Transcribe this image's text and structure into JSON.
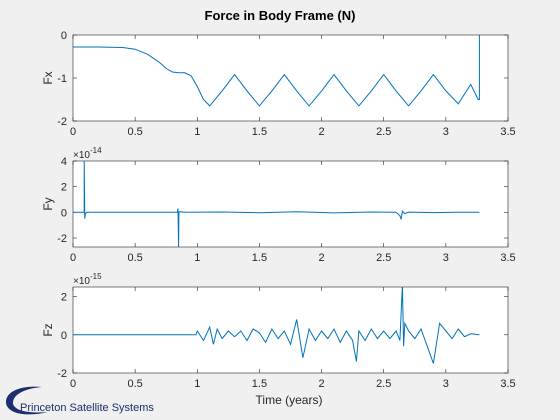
{
  "figure": {
    "title": "Force in Body Frame (N)",
    "xlabel": "Time (years)",
    "logo_text": "Princeton Satellite Systems",
    "logo_icon": "orbit-swoosh-icon"
  },
  "colors": {
    "line": "#0072bd",
    "axes_bg": "#ffffff",
    "figure_bg": "#f0f0f0",
    "axis": "#262626",
    "logo": "#1a2f6b"
  },
  "chart_data": [
    {
      "type": "line",
      "ylabel": "Fx",
      "exponent": "",
      "xlim": [
        0,
        3.5
      ],
      "ylim": [
        -2,
        0
      ],
      "xticks": [
        "0",
        "0.5",
        "1",
        "1.5",
        "2",
        "2.5",
        "3",
        "3.5"
      ],
      "yticks": [
        "-2",
        "-1",
        "0"
      ],
      "ytick_values": [
        -2,
        -1,
        0
      ],
      "x": [
        0,
        0.2,
        0.4,
        0.5,
        0.6,
        0.7,
        0.75,
        0.8,
        0.85,
        0.9,
        0.95,
        1.0,
        1.05,
        1.1,
        1.2,
        1.3,
        1.4,
        1.5,
        1.6,
        1.7,
        1.8,
        1.9,
        2.0,
        2.1,
        2.2,
        2.3,
        2.4,
        2.5,
        2.6,
        2.7,
        2.8,
        2.9,
        3.0,
        3.1,
        3.2,
        3.26,
        3.27,
        3.27
      ],
      "y": [
        -0.28,
        -0.28,
        -0.29,
        -0.33,
        -0.45,
        -0.65,
        -0.78,
        -0.86,
        -0.88,
        -0.88,
        -0.95,
        -1.2,
        -1.5,
        -1.65,
        -1.3,
        -0.92,
        -1.3,
        -1.65,
        -1.3,
        -0.92,
        -1.3,
        -1.65,
        -1.3,
        -0.92,
        -1.3,
        -1.65,
        -1.3,
        -0.92,
        -1.3,
        -1.65,
        -1.3,
        -0.92,
        -1.3,
        -1.6,
        -1.15,
        -1.5,
        -1.5,
        0
      ]
    },
    {
      "type": "line",
      "ylabel": "Fy",
      "exponent": "×10^-14",
      "xlim": [
        0,
        3.5
      ],
      "ylim": [
        -2.7,
        4
      ],
      "xticks": [
        "0",
        "0.5",
        "1",
        "1.5",
        "2",
        "2.5",
        "3",
        "3.5"
      ],
      "yticks": [
        "-2",
        "0",
        "2",
        "4"
      ],
      "ytick_values": [
        -2,
        0,
        2,
        4
      ],
      "x": [
        0,
        0.09,
        0.09,
        0.095,
        0.1,
        0.11,
        0.12,
        0.8,
        0.84,
        0.845,
        0.85,
        0.852,
        0.86,
        0.9,
        1.2,
        1.5,
        1.8,
        2.1,
        2.4,
        2.6,
        2.63,
        2.64,
        2.65,
        2.67,
        2.7,
        2.9,
        3.1,
        3.27
      ],
      "y": [
        0,
        0,
        4,
        -0.5,
        -0.1,
        0,
        0,
        0,
        0,
        0.3,
        -2.7,
        0,
        0.05,
        0,
        0.03,
        -0.03,
        0.05,
        -0.04,
        0.03,
        0,
        -0.25,
        -0.55,
        0.1,
        -0.1,
        0.02,
        -0.02,
        0,
        0
      ]
    },
    {
      "type": "line",
      "ylabel": "Fz",
      "exponent": "×10^-15",
      "xlim": [
        0,
        3.5
      ],
      "ylim": [
        -2,
        2.5
      ],
      "xticks": [
        "0",
        "0.5",
        "1",
        "1.5",
        "2",
        "2.5",
        "3",
        "3.5"
      ],
      "yticks": [
        "-2",
        "0",
        "2"
      ],
      "ytick_values": [
        -2,
        0,
        2
      ],
      "x": [
        0,
        0.99,
        1.0,
        1.05,
        1.1,
        1.13,
        1.16,
        1.2,
        1.25,
        1.3,
        1.35,
        1.4,
        1.45,
        1.5,
        1.55,
        1.6,
        1.65,
        1.7,
        1.75,
        1.8,
        1.85,
        1.9,
        1.95,
        2.0,
        2.05,
        2.1,
        2.15,
        2.2,
        2.25,
        2.28,
        2.3,
        2.35,
        2.4,
        2.45,
        2.5,
        2.55,
        2.6,
        2.63,
        2.65,
        2.66,
        2.67,
        2.7,
        2.75,
        2.8,
        2.85,
        2.9,
        2.95,
        3.0,
        3.05,
        3.1,
        3.15,
        3.2,
        3.27
      ],
      "y": [
        0,
        0,
        0.2,
        -0.3,
        0.4,
        -0.5,
        0.3,
        -0.2,
        0.2,
        -0.1,
        0.2,
        -0.3,
        0.3,
        0.1,
        -0.4,
        0.3,
        -0.2,
        0.2,
        -0.5,
        0.8,
        -1.2,
        0.3,
        -0.3,
        0.2,
        -0.2,
        0.3,
        -0.4,
        0.2,
        -0.3,
        -1.4,
        0.2,
        -0.3,
        0.3,
        -0.2,
        0.2,
        -0.2,
        0.2,
        -0.3,
        2.6,
        -0.6,
        0.6,
        0.2,
        -0.2,
        0.3,
        -0.6,
        -1.5,
        0.6,
        0.2,
        -0.2,
        0.3,
        -0.1,
        0.05,
        0
      ]
    }
  ]
}
